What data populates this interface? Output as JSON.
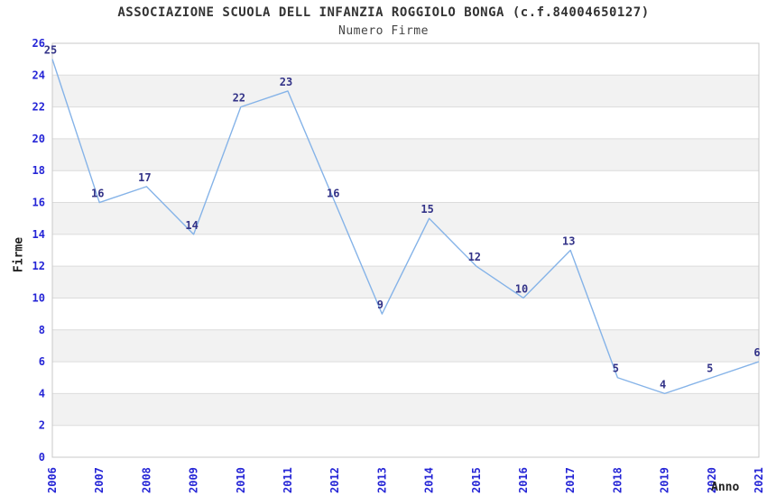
{
  "header": {
    "title": "ASSOCIAZIONE SCUOLA DELL INFANZIA ROGGIOLO BONGA (c.f.84004650127)",
    "subtitle": "Numero Firme"
  },
  "chart_data": {
    "type": "line",
    "title": "ASSOCIAZIONE SCUOLA DELL INFANZIA ROGGIOLO BONGA (c.f.84004650127)",
    "subtitle": "Numero Firme",
    "xlabel": "Anno",
    "ylabel": "Firme",
    "categories": [
      "2006",
      "2007",
      "2008",
      "2009",
      "2010",
      "2011",
      "2012",
      "2013",
      "2014",
      "2015",
      "2016",
      "2017",
      "2018",
      "2019",
      "2020",
      "2021"
    ],
    "values": [
      25,
      16,
      17,
      14,
      22,
      23,
      16,
      9,
      15,
      12,
      10,
      13,
      5,
      4,
      5,
      6
    ],
    "ylim": [
      0,
      26
    ],
    "ytick_step": 2,
    "grid": "horizontal-bands-on",
    "legend": "none",
    "colors": {
      "line": "#85b3e8",
      "tick_label": "#2525d6",
      "point_label": "#333388",
      "band": "#f2f2f2",
      "gridline": "#dcdcdc",
      "plot_border": "#c8c8c8",
      "title_text": "#333333",
      "axis_title_text": "#222222"
    }
  }
}
